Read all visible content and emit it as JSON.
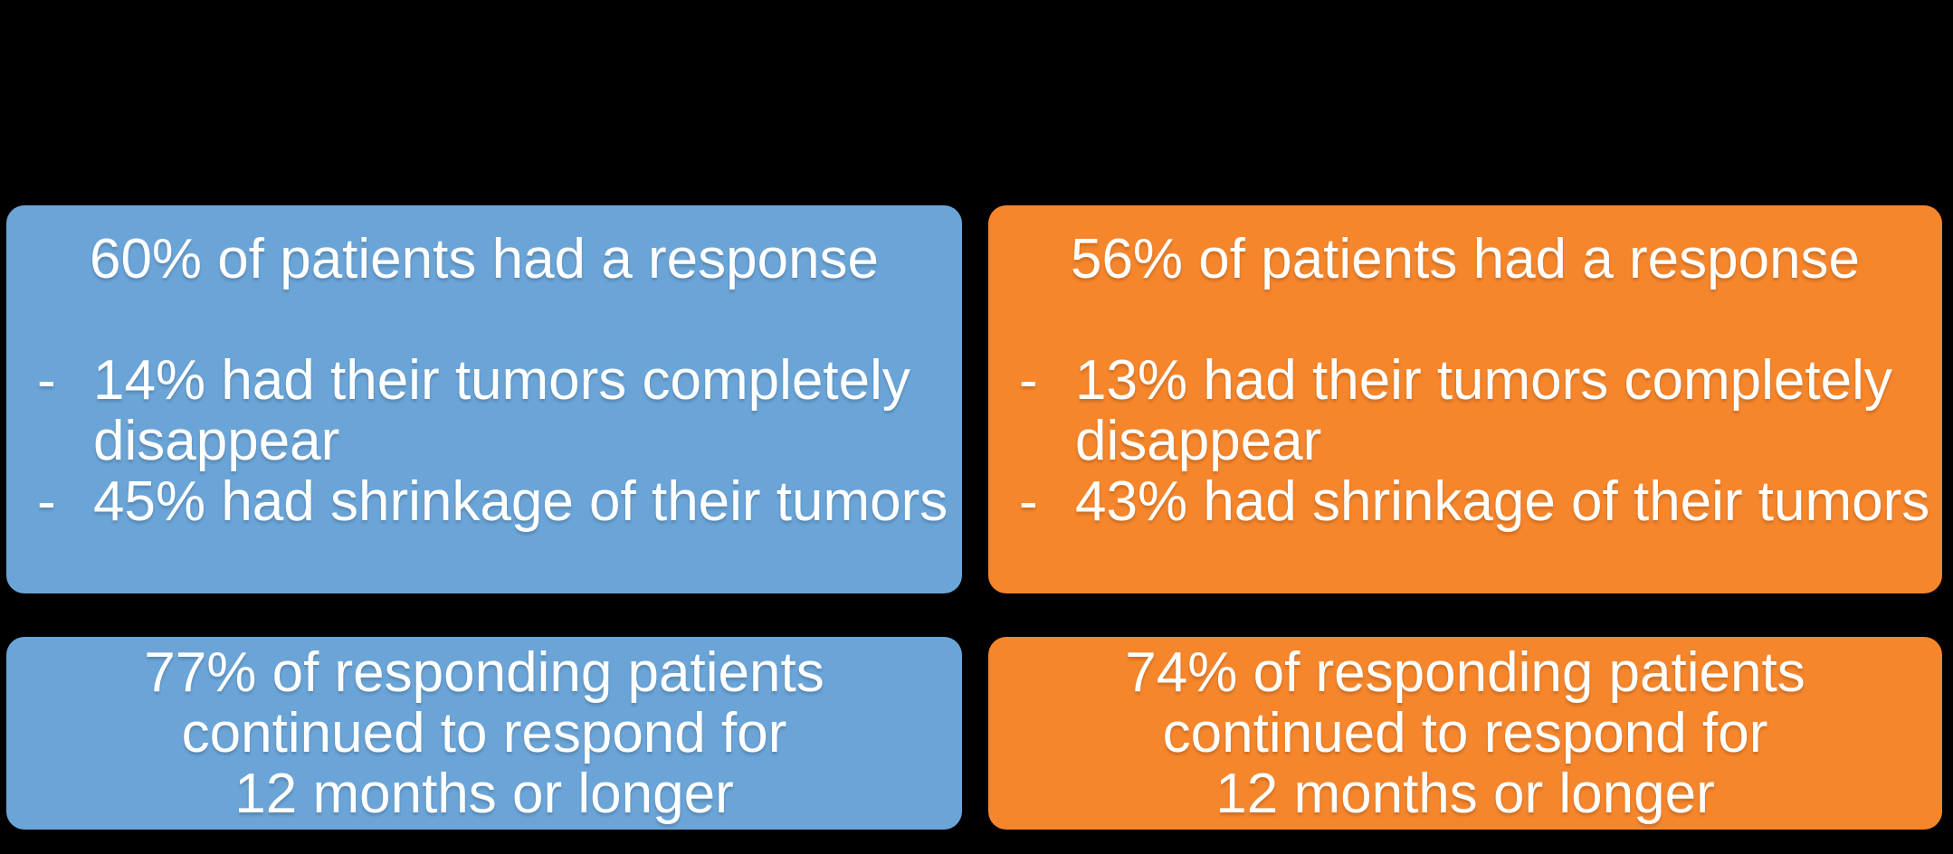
{
  "page": {
    "background": "#000000"
  },
  "colors": {
    "left_accent": "#6BA5D8",
    "right_accent": "#F6862C",
    "text": "#FFFFFF"
  },
  "bullet_marker": "-",
  "columns": {
    "left": {
      "color_name": "blue",
      "response": {
        "heading": "60% of patients had a response",
        "bullets": [
          "14% had their tumors completely disappear",
          "45% had shrinkage of their tumors"
        ]
      },
      "duration": {
        "lines": [
          "77% of responding patients",
          "continued to respond for",
          "12 months or longer"
        ]
      }
    },
    "right": {
      "color_name": "orange",
      "response": {
        "heading": "56% of patients had a response",
        "bullets": [
          "13% had their tumors completely disappear",
          "43% had shrinkage of their tumors"
        ]
      },
      "duration": {
        "lines": [
          "74% of responding patients",
          "continued to respond for",
          "12 months or longer"
        ]
      }
    }
  }
}
